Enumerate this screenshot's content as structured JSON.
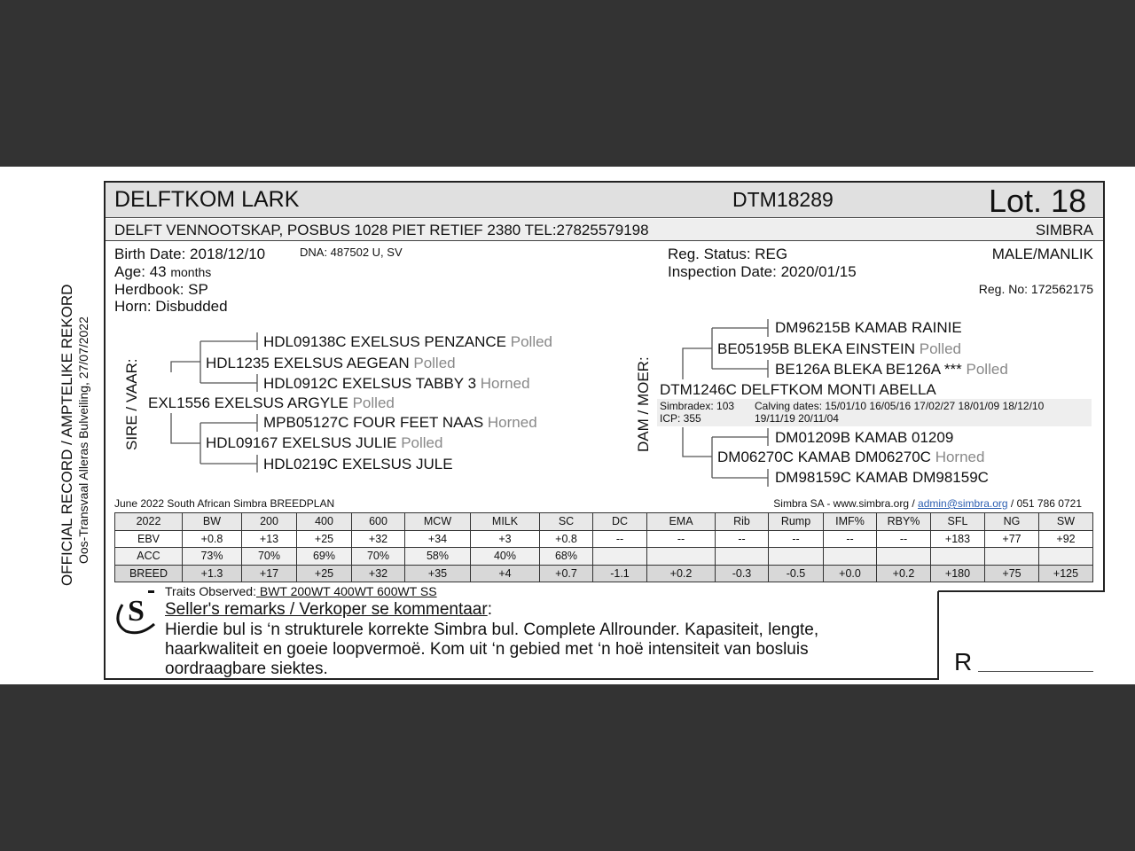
{
  "side": {
    "title": "OFFICIAL RECORD / AMPTELIKE REKORD",
    "subtitle": "Oos-Transvaal Alleras Bulveiling, 27/07/2022"
  },
  "header": {
    "name": "DELFTKOM LARK",
    "id": "DTM18289",
    "lot": "Lot. 18",
    "owner": "DELFT VENNOOTSKAP, POSBUS 1028 PIET RETIEF 2380 TEL:27825579198",
    "breed": "SIMBRA"
  },
  "info": {
    "birth": "Birth Date: 2018/12/10",
    "dna": "DNA: 487502 U, SV",
    "age": "Age: 43",
    "age_unit": "months",
    "herdbook": "Herdbook: SP",
    "horn": "Horn: Disbudded",
    "reg_status": "Reg. Status: REG",
    "inspection": "Inspection Date: 2020/01/15",
    "sex": "MALE/MANLIK",
    "reg_no": "Reg. No: 172562175"
  },
  "sire": {
    "label": "SIRE / VAAR:",
    "name": "EXL1556 EXELSUS ARGYLE",
    "horn": "Polled",
    "ss": {
      "name": "HDL1235 EXELSUS AEGEAN",
      "horn": "Polled"
    },
    "sss": {
      "name": "HDL09138C EXELSUS PENZANCE",
      "horn": "Polled"
    },
    "ssd": {
      "name": "HDL0912C EXELSUS TABBY 3",
      "horn": "Horned"
    },
    "sd": {
      "name": "HDL09167 EXELSUS JULIE",
      "horn": "Polled"
    },
    "sds": {
      "name": "MPB05127C FOUR FEET NAAS",
      "horn": "Horned"
    },
    "sdd": {
      "name": "HDL0219C EXELSUS JULE",
      "horn": ""
    }
  },
  "dam": {
    "label": "DAM / MOER:",
    "name": "DTM1246C DELFTKOM MONTI ABELLA",
    "simbradex": "Simbradex: 103",
    "icp": "ICP: 355",
    "calving1": "Calving dates: 15/01/10  16/05/16  17/02/27  18/01/09  18/12/10",
    "calving2": "19/11/19  20/11/04",
    "ds": {
      "name": "BE05195B BLEKA EINSTEIN",
      "horn": "Polled"
    },
    "dss": {
      "name": "DM96215B KAMAB RAINIE",
      "horn": ""
    },
    "dsd": {
      "name": "BE126A BLEKA BE126A ***",
      "horn": "Polled"
    },
    "dd": {
      "name": "DM06270C KAMAB DM06270C",
      "horn": "Horned"
    },
    "dds": {
      "name": "DM01209B KAMAB 01209",
      "horn": ""
    },
    "ddd": {
      "name": "DM98159C KAMAB DM98159C",
      "horn": ""
    }
  },
  "breedplan": {
    "title": "June 2022 South African Simbra BREEDPLAN",
    "contact_pre": "Simbra SA - www.simbra.org / ",
    "email": "admin@simbra.org",
    "contact_post": " / 051 786 0721",
    "headers": [
      "2022",
      "BW",
      "200",
      "400",
      "600",
      "MCW",
      "MILK",
      "SC",
      "DC",
      "EMA",
      "Rib",
      "Rump",
      "IMF%",
      "RBY%",
      "SFL",
      "NG",
      "SW"
    ],
    "rows": [
      [
        "EBV",
        "+0.8",
        "+13",
        "+25",
        "+32",
        "+34",
        "+3",
        "+0.8",
        "--",
        "--",
        "--",
        "--",
        "--",
        "--",
        "+183",
        "+77",
        "+92"
      ],
      [
        "ACC",
        "73%",
        "70%",
        "69%",
        "70%",
        "58%",
        "40%",
        "68%",
        "",
        "",
        "",
        "",
        "",
        "",
        "",
        "",
        ""
      ],
      [
        "BREED",
        "+1.3",
        "+17",
        "+25",
        "+32",
        "+35",
        "+4",
        "+0.7",
        "-1.1",
        "+0.2",
        "-0.3",
        "-0.5",
        "+0.0",
        "+0.2",
        "+180",
        "+75",
        "+125"
      ]
    ]
  },
  "remarks": {
    "traits_label": "Traits Observed:",
    "traits": " BWT  200WT  400WT  600WT  SS",
    "title": "Seller's remarks / Verkoper se kommentaar",
    "colon": ":",
    "line1": "Hierdie bul is ‘n strukturele korrekte Simbra bul. Complete Allrounder. Kapasiteit, lengte,",
    "line2": "haarkwaliteit en goeie loopvermoë.  Kom uit ‘n gebied met ‘n hoë intensiteit van bosluis",
    "line3": "oordraagbare siektes."
  },
  "price": {
    "label": "R"
  },
  "logo": {
    "text": "S"
  }
}
